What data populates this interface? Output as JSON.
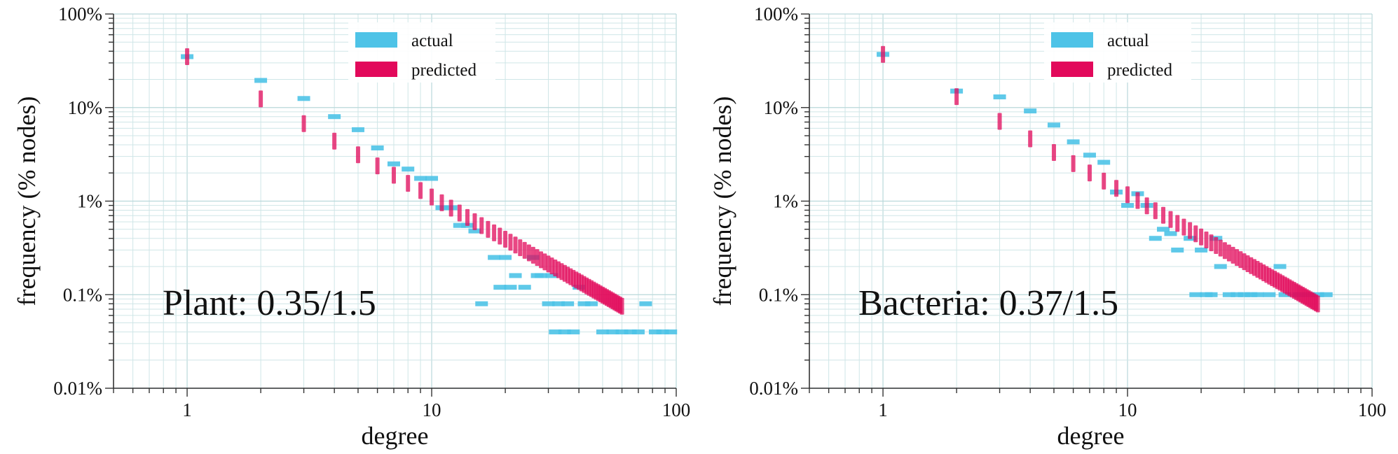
{
  "colors": {
    "actual": "#4ec3e7",
    "predicted": "#e2095b",
    "grid": "#b9d8da"
  },
  "chart_data": [
    {
      "type": "scatter",
      "title": "",
      "annotation": "Plant: 0.35/1.5",
      "xlabel": "degree",
      "ylabel": "frequency (% nodes)",
      "xscale": "log",
      "yscale": "log",
      "xlim": [
        0.5,
        100
      ],
      "ylim": [
        0.01,
        100
      ],
      "xticks": [
        "1",
        "10",
        "100"
      ],
      "yticks": [
        "100%",
        "10%",
        "1%",
        "0.1%",
        "0.01%"
      ],
      "grid": true,
      "legend": {
        "position": "top-center",
        "entries": [
          "actual",
          "predicted"
        ]
      },
      "series": [
        {
          "name": "actual",
          "marker": "horizontal-dash",
          "points": [
            [
              1,
              35
            ],
            [
              2,
              19.5
            ],
            [
              3,
              12.5
            ],
            [
              4,
              8
            ],
            [
              5,
              5.8
            ],
            [
              6,
              3.7
            ],
            [
              7,
              2.5
            ],
            [
              8,
              2.2
            ],
            [
              9,
              1.75
            ],
            [
              10,
              1.75
            ],
            [
              11,
              0.85
            ],
            [
              12,
              0.85
            ],
            [
              13,
              0.55
            ],
            [
              14,
              0.55
            ],
            [
              15,
              0.48
            ],
            [
              16,
              0.08
            ],
            [
              18,
              0.25
            ],
            [
              19,
              0.12
            ],
            [
              20,
              0.25
            ],
            [
              21,
              0.12
            ],
            [
              22,
              0.16
            ],
            [
              24,
              0.12
            ],
            [
              26,
              0.25
            ],
            [
              27,
              0.16
            ],
            [
              28,
              0.16
            ],
            [
              30,
              0.08
            ],
            [
              31,
              0.16
            ],
            [
              32,
              0.04
            ],
            [
              33,
              0.08
            ],
            [
              35,
              0.04
            ],
            [
              36,
              0.08
            ],
            [
              38,
              0.04
            ],
            [
              40,
              0.12
            ],
            [
              42,
              0.08
            ],
            [
              45,
              0.08
            ],
            [
              50,
              0.04
            ],
            [
              55,
              0.04
            ],
            [
              60,
              0.04
            ],
            [
              65,
              0.04
            ],
            [
              70,
              0.04
            ],
            [
              75,
              0.08
            ],
            [
              82,
              0.04
            ],
            [
              88,
              0.04
            ],
            [
              95,
              0.04
            ]
          ]
        },
        {
          "name": "predicted",
          "marker": "vertical-dash",
          "alpha": 0.35,
          "exponent": 1.5,
          "xmax": 60
        }
      ]
    },
    {
      "type": "scatter",
      "title": "",
      "annotation": "Bacteria: 0.37/1.5",
      "xlabel": "degree",
      "ylabel": "frequency (% nodes)",
      "xscale": "log",
      "yscale": "log",
      "xlim": [
        0.5,
        100
      ],
      "ylim": [
        0.01,
        100
      ],
      "xticks": [
        "1",
        "10",
        "100"
      ],
      "yticks": [
        "100%",
        "10%",
        "1%",
        "0.1%",
        "0.01%"
      ],
      "grid": true,
      "legend": {
        "position": "top-center",
        "entries": [
          "actual",
          "predicted"
        ]
      },
      "series": [
        {
          "name": "actual",
          "marker": "horizontal-dash",
          "points": [
            [
              1,
              37
            ],
            [
              2,
              15
            ],
            [
              3,
              13
            ],
            [
              4,
              9.2
            ],
            [
              5,
              6.5
            ],
            [
              6,
              4.3
            ],
            [
              7,
              3.1
            ],
            [
              8,
              2.6
            ],
            [
              9,
              1.25
            ],
            [
              10,
              0.9
            ],
            [
              11,
              1.2
            ],
            [
              12,
              0.9
            ],
            [
              13,
              0.4
            ],
            [
              14,
              0.5
            ],
            [
              15,
              0.45
            ],
            [
              16,
              0.3
            ],
            [
              18,
              0.4
            ],
            [
              19,
              0.1
            ],
            [
              20,
              0.3
            ],
            [
              21,
              0.1
            ],
            [
              22,
              0.1
            ],
            [
              23,
              0.4
            ],
            [
              24,
              0.2
            ],
            [
              26,
              0.1
            ],
            [
              28,
              0.1
            ],
            [
              30,
              0.1
            ],
            [
              32,
              0.1
            ],
            [
              34,
              0.1
            ],
            [
              38,
              0.1
            ],
            [
              42,
              0.2
            ],
            [
              44,
              0.1
            ],
            [
              50,
              0.1
            ],
            [
              55,
              0.1
            ],
            [
              60,
              0.1
            ],
            [
              65,
              0.1
            ]
          ]
        },
        {
          "name": "predicted",
          "marker": "vertical-dash",
          "alpha": 0.37,
          "exponent": 1.5,
          "xmax": 60
        }
      ]
    }
  ]
}
